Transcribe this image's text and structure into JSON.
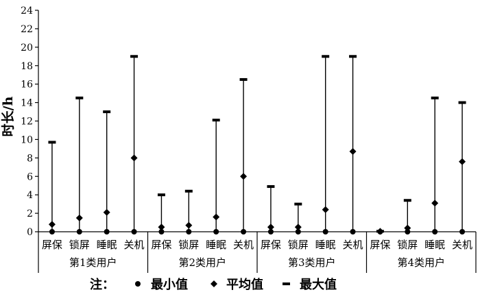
{
  "chart_data": {
    "type": "range",
    "ylabel": "时长/h",
    "ylim": [
      0,
      24
    ],
    "yticks": [
      0,
      2,
      4,
      6,
      8,
      10,
      12,
      14,
      16,
      18,
      20,
      22,
      24
    ],
    "grid": false,
    "legend_placement": "bottom",
    "groups": [
      {
        "label": "第1类用户",
        "categories": [
          "屏保",
          "锁屏",
          "睡眠",
          "关机"
        ],
        "min": [
          0,
          0,
          0,
          0
        ],
        "mean": [
          0.8,
          1.5,
          2.1,
          8.0
        ],
        "max": [
          9.7,
          14.5,
          13.0,
          19.0
        ]
      },
      {
        "label": "第2类用户",
        "categories": [
          "屏保",
          "锁屏",
          "睡眠",
          "关机"
        ],
        "min": [
          0,
          0,
          0,
          0
        ],
        "mean": [
          0.5,
          0.7,
          1.6,
          6.0
        ],
        "max": [
          4.0,
          4.4,
          12.1,
          16.5
        ]
      },
      {
        "label": "第3类用户",
        "categories": [
          "屏保",
          "锁屏",
          "睡眠",
          "关机"
        ],
        "min": [
          0,
          0,
          0,
          0
        ],
        "mean": [
          0.5,
          0.5,
          2.4,
          8.7
        ],
        "max": [
          4.9,
          3.0,
          19.0,
          19.0
        ]
      },
      {
        "label": "第4类用户",
        "categories": [
          "屏保",
          "锁屏",
          "睡眠",
          "关机"
        ],
        "min": [
          0,
          0,
          0,
          0
        ],
        "mean": [
          0.05,
          0.4,
          3.1,
          7.6
        ],
        "max": [
          0.05,
          3.4,
          14.5,
          14.0
        ]
      }
    ],
    "legend": {
      "prefix": "注：",
      "items": [
        {
          "marker": "circle",
          "label": "最小值"
        },
        {
          "marker": "diamond",
          "label": "平均值"
        },
        {
          "marker": "dash",
          "label": "最大值"
        }
      ]
    }
  }
}
